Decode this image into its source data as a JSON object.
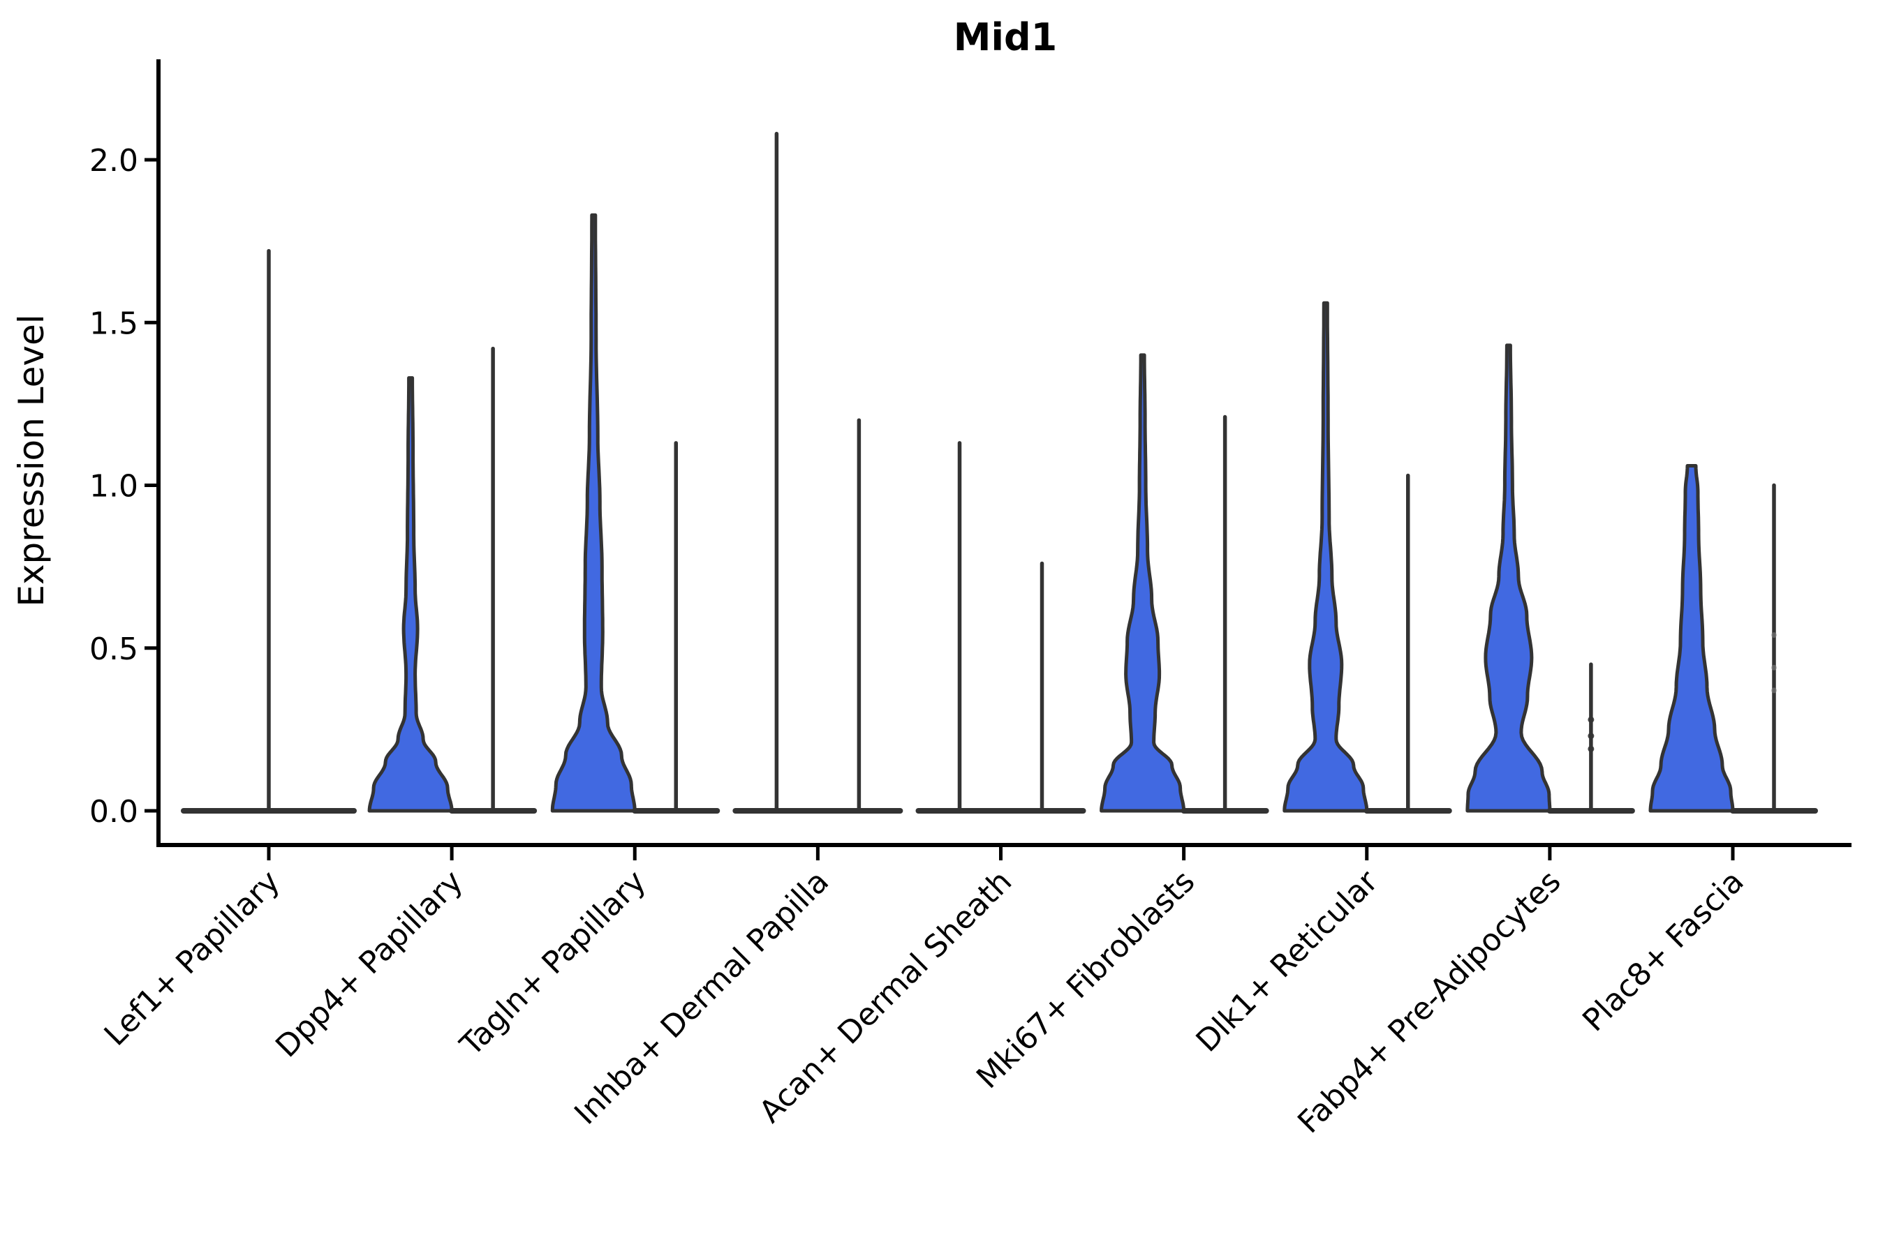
{
  "chart_data": {
    "type": "violin",
    "title": "Mid1",
    "ylabel": "Expression Level",
    "xlabel": "",
    "legend": null,
    "grid": false,
    "ylim": [
      -0.105,
      2.31
    ],
    "yticks": [
      {
        "value": 2.0,
        "label": "2.0"
      },
      {
        "value": 1.5,
        "label": "1.5"
      },
      {
        "value": 1.0,
        "label": "1.0"
      },
      {
        "value": 0.5,
        "label": "0.5"
      },
      {
        "value": 0.0,
        "label": "0.0"
      }
    ],
    "categories": [
      "Lef1+ Papillary",
      "Dpp4+ Papillary",
      "Tagln+ Papillary",
      "Inhba+ Dermal Papilla",
      "Acan+ Dermal Sheath",
      "Mki67+ Fibroblasts",
      "Dlk1+ Reticular",
      "Fabp4+ Pre-Adipocytes",
      "Plac8+ Fascia"
    ],
    "colors": {
      "violin_fill": "#4169E1",
      "violin_edge": "#333333",
      "axis": "#000000",
      "faint_dot": "#888888"
    },
    "violin_note": "Each category holds two dodged violins (offset px from tick). style 'line' = fully collapsed violin: flat base bar at 0 plus thin spike to max. style 'filled' = blue KDE shape; profile = [expression value, half-width px]. dots = jitter points on spike (value units).",
    "violins": [
      {
        "cat": 0,
        "offset": 0,
        "style": "line",
        "base_hw": 122,
        "max": 1.72
      },
      {
        "cat": 1,
        "offset": -59,
        "style": "filled",
        "base_hw": 59,
        "max": 1.33,
        "profile": [
          [
            0,
            59
          ],
          [
            0.07,
            53
          ],
          [
            0.15,
            36
          ],
          [
            0.22,
            18
          ],
          [
            0.3,
            8
          ],
          [
            0.42,
            6.5
          ],
          [
            0.56,
            10
          ],
          [
            0.68,
            6.5
          ],
          [
            0.85,
            4.5
          ],
          [
            1.1,
            3.5
          ],
          [
            1.33,
            2.5
          ]
        ]
      },
      {
        "cat": 1,
        "offset": 59,
        "style": "line",
        "base_hw": 59,
        "max": 1.42
      },
      {
        "cat": 2,
        "offset": -59,
        "style": "filled",
        "base_hw": 59,
        "max": 1.83,
        "profile": [
          [
            0,
            59
          ],
          [
            0.08,
            54
          ],
          [
            0.17,
            40
          ],
          [
            0.27,
            20
          ],
          [
            0.38,
            11
          ],
          [
            0.55,
            13
          ],
          [
            0.75,
            12
          ],
          [
            0.95,
            9
          ],
          [
            1.15,
            6
          ],
          [
            1.45,
            3.5
          ],
          [
            1.83,
            2.5
          ]
        ]
      },
      {
        "cat": 2,
        "offset": 59,
        "style": "line",
        "base_hw": 59,
        "max": 1.13
      },
      {
        "cat": 3,
        "offset": -59,
        "style": "line",
        "base_hw": 59,
        "max": 2.08
      },
      {
        "cat": 3,
        "offset": 59,
        "style": "line",
        "base_hw": 59,
        "max": 1.2
      },
      {
        "cat": 4,
        "offset": -59,
        "style": "line",
        "base_hw": 59,
        "max": 1.13
      },
      {
        "cat": 4,
        "offset": 59,
        "style": "line",
        "base_hw": 59,
        "max": 0.76
      },
      {
        "cat": 5,
        "offset": -59,
        "style": "filled",
        "base_hw": 59,
        "max": 1.4,
        "profile": [
          [
            0,
            59
          ],
          [
            0.07,
            54
          ],
          [
            0.14,
            42
          ],
          [
            0.21,
            16
          ],
          [
            0.3,
            18
          ],
          [
            0.42,
            24
          ],
          [
            0.52,
            22
          ],
          [
            0.65,
            13
          ],
          [
            0.8,
            7
          ],
          [
            1.0,
            4.5
          ],
          [
            1.2,
            3.5
          ],
          [
            1.4,
            2.5
          ]
        ]
      },
      {
        "cat": 5,
        "offset": 59,
        "style": "line",
        "base_hw": 59,
        "max": 1.21
      },
      {
        "cat": 6,
        "offset": -59,
        "style": "filled",
        "base_hw": 59,
        "max": 1.56,
        "profile": [
          [
            0,
            59
          ],
          [
            0.07,
            54
          ],
          [
            0.14,
            40
          ],
          [
            0.22,
            15
          ],
          [
            0.32,
            19
          ],
          [
            0.45,
            23
          ],
          [
            0.58,
            15
          ],
          [
            0.72,
            9
          ],
          [
            0.9,
            5
          ],
          [
            1.2,
            3.5
          ],
          [
            1.56,
            2.5
          ]
        ]
      },
      {
        "cat": 6,
        "offset": 59,
        "style": "line",
        "base_hw": 59,
        "max": 1.03
      },
      {
        "cat": 7,
        "offset": -59,
        "style": "filled",
        "base_hw": 59,
        "max": 1.43,
        "profile": [
          [
            0,
            59
          ],
          [
            0.05,
            58
          ],
          [
            0.12,
            48
          ],
          [
            0.24,
            18
          ],
          [
            0.35,
            27
          ],
          [
            0.47,
            33
          ],
          [
            0.6,
            26
          ],
          [
            0.72,
            14
          ],
          [
            0.85,
            8
          ],
          [
            1.0,
            5.5
          ],
          [
            1.2,
            4
          ],
          [
            1.43,
            2.5
          ]
        ]
      },
      {
        "cat": 7,
        "offset": 59,
        "style": "line",
        "base_hw": 59,
        "max": 0.45,
        "dots": [
          0.28,
          0.23,
          0.19
        ],
        "dots_style": "dark"
      },
      {
        "cat": 8,
        "offset": -59,
        "style": "filled",
        "base_hw": 59,
        "max": 1.06,
        "profile": [
          [
            0,
            59
          ],
          [
            0.06,
            56
          ],
          [
            0.14,
            44
          ],
          [
            0.25,
            33
          ],
          [
            0.38,
            22
          ],
          [
            0.52,
            16
          ],
          [
            0.68,
            13
          ],
          [
            0.85,
            10
          ],
          [
            0.98,
            9
          ],
          [
            1.06,
            6
          ]
        ]
      },
      {
        "cat": 8,
        "offset": 59,
        "style": "line",
        "base_hw": 59,
        "max": 1.0,
        "dots": [
          0.54,
          0.44,
          0.37
        ],
        "dots_style": "faint"
      }
    ]
  }
}
